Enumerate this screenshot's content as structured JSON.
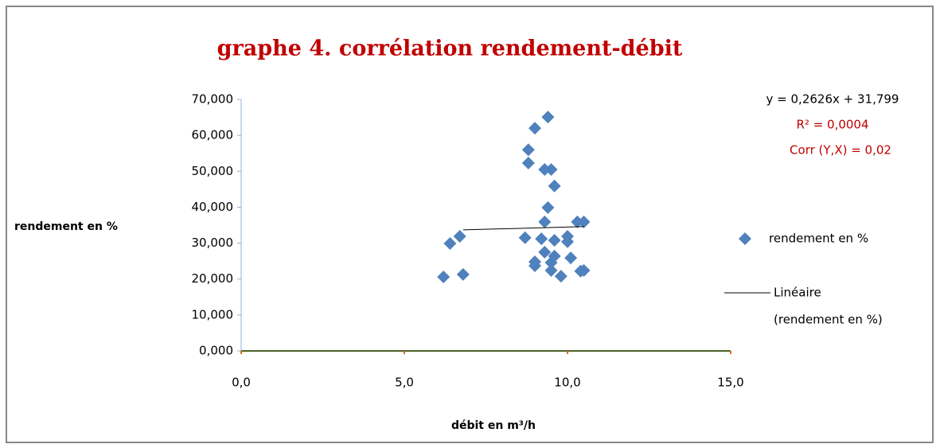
{
  "chart_data": {
    "type": "scatter",
    "title": "graphe 4. corrélation rendement-débit",
    "xlabel": "débit en m³/h",
    "ylabel": "rendement en %",
    "xlim": [
      0,
      15
    ],
    "ylim": [
      0,
      70
    ],
    "xticks": [
      {
        "value": 0,
        "label": "0,0"
      },
      {
        "value": 5,
        "label": "5,0"
      },
      {
        "value": 10,
        "label": "10,0"
      },
      {
        "value": 15,
        "label": "15,0"
      }
    ],
    "yticks": [
      {
        "value": 0,
        "label": "0,000"
      },
      {
        "value": 10,
        "label": "10,000"
      },
      {
        "value": 20,
        "label": "20,000"
      },
      {
        "value": 30,
        "label": "30,000"
      },
      {
        "value": 40,
        "label": "40,000"
      },
      {
        "value": 50,
        "label": "50,000"
      },
      {
        "value": 60,
        "label": "60,000"
      },
      {
        "value": 70,
        "label": "70,000"
      }
    ],
    "series": [
      {
        "name": "rendement en %",
        "color": "#4f81bd",
        "x": [
          6.2,
          6.4,
          6.7,
          6.8,
          8.7,
          8.8,
          8.8,
          9.0,
          9.0,
          9.0,
          9.2,
          9.3,
          9.3,
          9.3,
          9.4,
          9.4,
          9.5,
          9.5,
          9.5,
          9.6,
          9.6,
          9.6,
          9.8,
          10.0,
          10.0,
          10.1,
          10.3,
          10.4,
          10.5,
          10.5
        ],
        "values": [
          20.6,
          29.9,
          31.9,
          21.3,
          31.5,
          56,
          52.3,
          62,
          23.7,
          24.8,
          31.2,
          27.5,
          35.9,
          50.5,
          65.1,
          39.9,
          50.5,
          24.6,
          22.4,
          30.8,
          26.4,
          45.9,
          20.8,
          31.9,
          30.4,
          25.9,
          35.9,
          22.2,
          22.4,
          35.9
        ]
      }
    ],
    "trendline": {
      "name": [
        "Linéaire",
        "(rendement en %)"
      ],
      "color": "#000000",
      "x": [
        6.8,
        10.5
      ],
      "values": [
        33.7,
        34.6
      ]
    },
    "annotations": [
      "y = 0,2626x + 31,799",
      "R² = 0,0004",
      "Corr (Y,X) = 0,02"
    ]
  }
}
